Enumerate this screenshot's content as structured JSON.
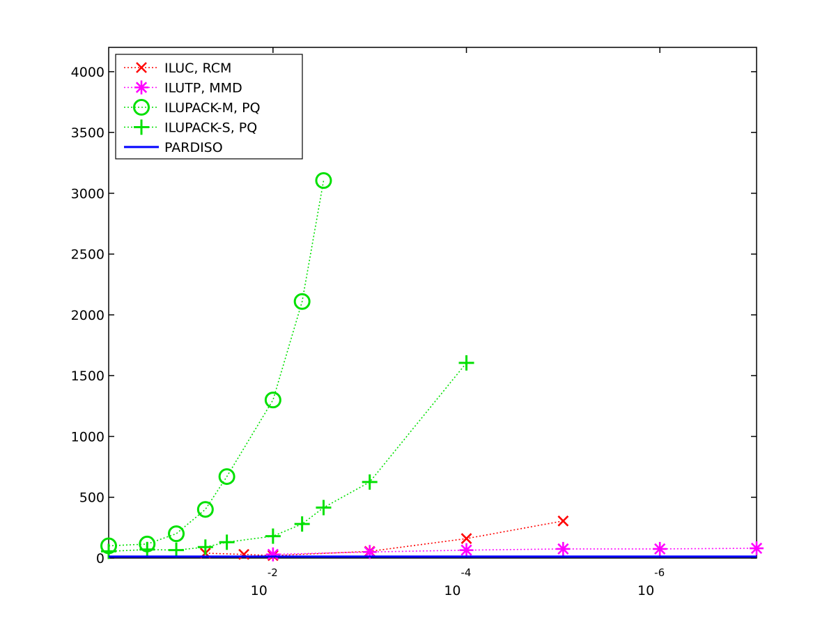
{
  "chart_data": {
    "type": "line",
    "title": "",
    "xlabel": "",
    "ylabel": "",
    "x_scale": "log-reversed",
    "xlim": [
      0.5,
      1e-07
    ],
    "ylim": [
      0,
      4200
    ],
    "grid": false,
    "legend_position": "top-left",
    "y_ticks": [
      0,
      500,
      1000,
      1500,
      2000,
      2500,
      3000,
      3500,
      4000
    ],
    "x_ticks": [
      {
        "value": 0.01,
        "base": "10",
        "exponent": "-2"
      },
      {
        "value": 0.0001,
        "base": "10",
        "exponent": "-4"
      },
      {
        "value": 1e-06,
        "base": "10",
        "exponent": "-6"
      }
    ],
    "series": [
      {
        "name": "ILUC, RCM",
        "color": "#ff0000",
        "marker": "x",
        "line_style": "dotted",
        "points": [
          {
            "x": 0.05,
            "y": 40
          },
          {
            "x": 0.02,
            "y": 30
          },
          {
            "x": 0.01,
            "y": 20
          },
          {
            "x": 0.001,
            "y": 55
          },
          {
            "x": 0.0001,
            "y": 160
          },
          {
            "x": 1e-05,
            "y": 305
          }
        ]
      },
      {
        "name": "ILUTP, MMD",
        "color": "#ff00ff",
        "marker": "asterisk",
        "line_style": "dotted",
        "points": [
          {
            "x": 0.01,
            "y": 30
          },
          {
            "x": 0.001,
            "y": 50
          },
          {
            "x": 0.0001,
            "y": 65
          },
          {
            "x": 1e-05,
            "y": 75
          },
          {
            "x": 1e-06,
            "y": 75
          },
          {
            "x": 1e-07,
            "y": 80
          }
        ]
      },
      {
        "name": "ILUPACK-M, PQ",
        "color": "#00e000",
        "marker": "circle",
        "line_style": "dotted",
        "points": [
          {
            "x": 0.5,
            "y": 100
          },
          {
            "x": 0.2,
            "y": 115
          },
          {
            "x": 0.1,
            "y": 200
          },
          {
            "x": 0.05,
            "y": 400
          },
          {
            "x": 0.03,
            "y": 670
          },
          {
            "x": 0.01,
            "y": 1300
          },
          {
            "x": 0.005,
            "y": 2110
          },
          {
            "x": 0.003,
            "y": 3105
          }
        ]
      },
      {
        "name": "ILUPACK-S, PQ",
        "color": "#00e000",
        "marker": "plus",
        "line_style": "dotted",
        "points": [
          {
            "x": 0.5,
            "y": 55
          },
          {
            "x": 0.2,
            "y": 70
          },
          {
            "x": 0.1,
            "y": 65
          },
          {
            "x": 0.05,
            "y": 90
          },
          {
            "x": 0.03,
            "y": 130
          },
          {
            "x": 0.01,
            "y": 180
          },
          {
            "x": 0.005,
            "y": 280
          },
          {
            "x": 0.003,
            "y": 415
          },
          {
            "x": 0.001,
            "y": 625
          },
          {
            "x": 0.0001,
            "y": 1605
          }
        ]
      },
      {
        "name": "PARDISO",
        "color": "#0000ff",
        "marker": "none",
        "line_style": "solid",
        "points": [
          {
            "x": 0.5,
            "y": 12
          },
          {
            "x": 1e-07,
            "y": 12
          }
        ]
      }
    ]
  }
}
